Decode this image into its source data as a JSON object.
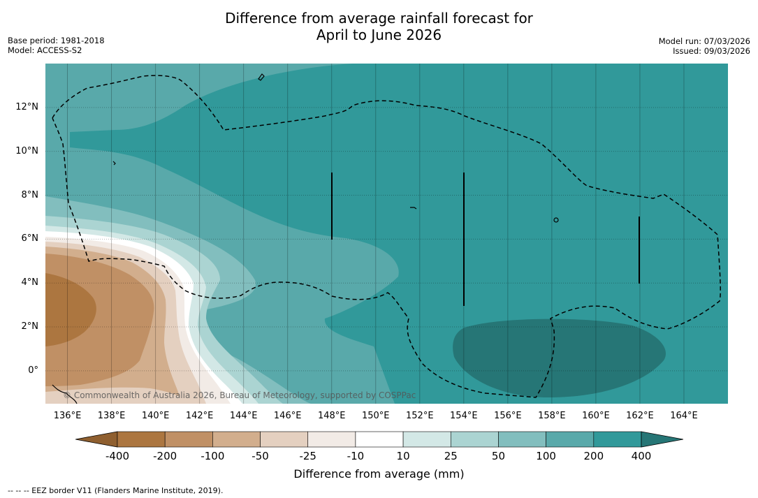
{
  "title": {
    "line1": "Difference from average rainfall forecast for",
    "line2": "April to June 2026"
  },
  "meta_left": {
    "base_period": "Base period: 1981-2018",
    "model": "Model: ACCESS-S2"
  },
  "meta_right": {
    "model_run": "Model run: 07/03/2026",
    "issued": "Issued: 09/03/2026"
  },
  "axes": {
    "lon_range": [
      135,
      166
    ],
    "lat_range": [
      -1.5,
      14
    ],
    "lat_ticks": [
      "12°N",
      "10°N",
      "8°N",
      "6°N",
      "4°N",
      "2°N",
      "0°"
    ],
    "lon_ticks": [
      "136°E",
      "138°E",
      "140°E",
      "142°E",
      "144°E",
      "146°E",
      "148°E",
      "150°E",
      "152°E",
      "154°E",
      "156°E",
      "158°E",
      "160°E",
      "162°E",
      "164°E"
    ]
  },
  "copyright": "© Commonwealth of Australia 2026, Bureau of Meteorology, supported by COSPPac",
  "colorbar": {
    "ticks": [
      "-400",
      "-200",
      "-100",
      "-50",
      "-25",
      "-10",
      "10",
      "25",
      "50",
      "100",
      "200",
      "400"
    ],
    "colors": [
      "#8f5f2f",
      "#ac7640",
      "#c09065",
      "#d2ae8d",
      "#e4d0c0",
      "#f2ebe6",
      "#ffffff",
      "#d3e8e6",
      "#abd4d2",
      "#82bebe",
      "#59a9aa",
      "#31999a",
      "#267676"
    ],
    "label": "Difference from average (mm)"
  },
  "legend_note": "--  --  -- EEZ border V11 (Flanders Marine Institute, 2019)."
}
